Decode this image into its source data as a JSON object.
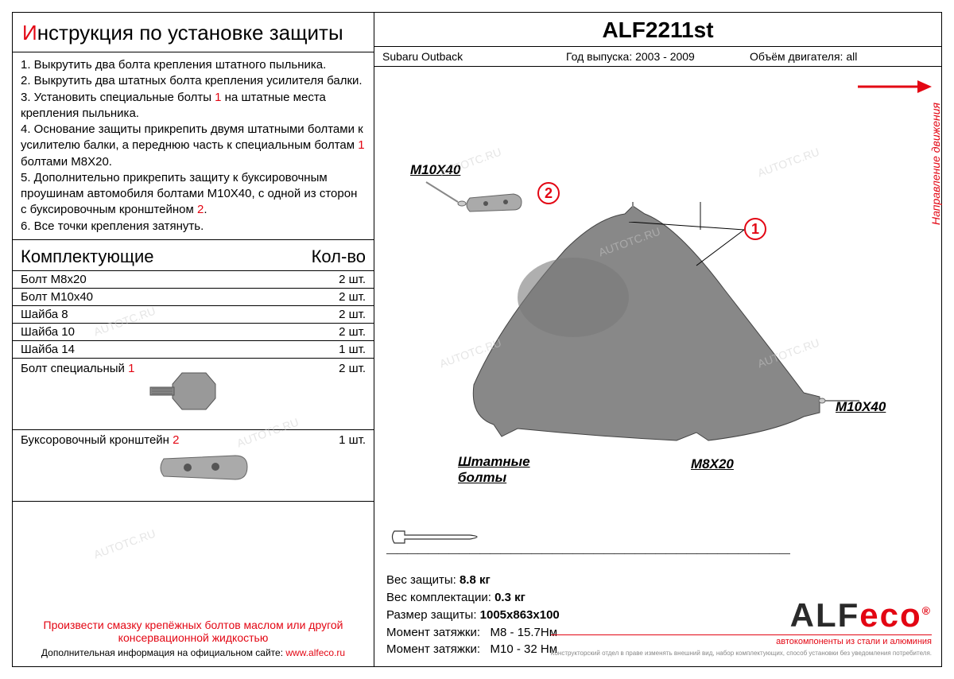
{
  "title": {
    "first_letter": "И",
    "rest": "нструкция по установке защиты"
  },
  "instructions": [
    "1. Выкрутить два болта крепления штатного пыльника.",
    "2. Выкрутить два штатных болта крепления усилителя балки.",
    "3. Установить специальные болты <red>1</red> на штатные места крепления пыльника.",
    "4. Основание защиты прикрепить двумя штатными болтами к усилителю балки, а переднюю часть к специальным болтам <red>1</red> болтами М8Х20.",
    "5. Дополнительно прикрепить защиту к буксировочным проушинам автомобиля болтами М10Х40, с одной из сторон с буксировочным кронштейном <red>2</red>.",
    "6. Все точки крепления затянуть."
  ],
  "components": {
    "header_name": "Комплектующие",
    "header_qty": "Кол-во",
    "rows": [
      {
        "name": "Болт М8х20",
        "qty": "2 шт."
      },
      {
        "name": "Болт М10х40",
        "qty": "2 шт."
      },
      {
        "name": "Шайба 8",
        "qty": "2 шт."
      },
      {
        "name": "Шайба 10",
        "qty": "2 шт."
      },
      {
        "name": "Шайба 14",
        "qty": "1 шт."
      },
      {
        "name": "Болт специальный <red>1</red>",
        "qty": "2 шт.",
        "image": "bolt"
      },
      {
        "name": "Буксоровочный кронштейн <red>2</red>",
        "qty": "1 шт.",
        "image": "bracket"
      }
    ]
  },
  "footer": {
    "warning": "Произвести смазку крепёжных болтов маслом или другой консервационной жидкостью",
    "info_label": "Дополнительная информация на официальном сайте:",
    "site": "www.alfeco.ru"
  },
  "product": {
    "code": "ALF2211st",
    "vehicle": "Subaru Outback",
    "year_label": "Год выпуска:",
    "year_value": "2003 - 2009",
    "engine_label": "Объём двигателя:",
    "engine_value": "all"
  },
  "diagram": {
    "direction_label": "Направление движения",
    "callouts": {
      "m10x40_top": "M10X40",
      "m10x40_right": "M10X40",
      "m8x20": "M8X20",
      "stock_bolts_l1": "Штатные",
      "stock_bolts_l2": "болты"
    },
    "circles": {
      "one": "1",
      "two": "2"
    },
    "line": "―――――――――――――――――――――――――――――――――――――――",
    "arrow_color": "#e30613",
    "shield_fill": "#888888"
  },
  "specs": {
    "weight_label": "Вес защиты:",
    "weight_value": "8.8 кг",
    "kit_weight_label": "Вес комплектации:",
    "kit_weight_value": "0.3 кг",
    "size_label": "Размер защиты:",
    "size_value": "1005x863x100",
    "torque1_label": "Момент затяжки:",
    "torque1_value": "М8 - 15.7Нм",
    "torque2_label": "Момент затяжки:",
    "torque2_value": "М10 - 32 Нм"
  },
  "logo": {
    "alf": "ALF",
    "eco": "eco",
    "reg": "®",
    "tagline": "автокомпоненты из стали и алюминия",
    "disclaimer": "Конструкторский отдел в праве изменять внешний вид, набор комплектующих, способ установки без уведомления потребителя."
  },
  "watermark": "AUTOTC.RU"
}
